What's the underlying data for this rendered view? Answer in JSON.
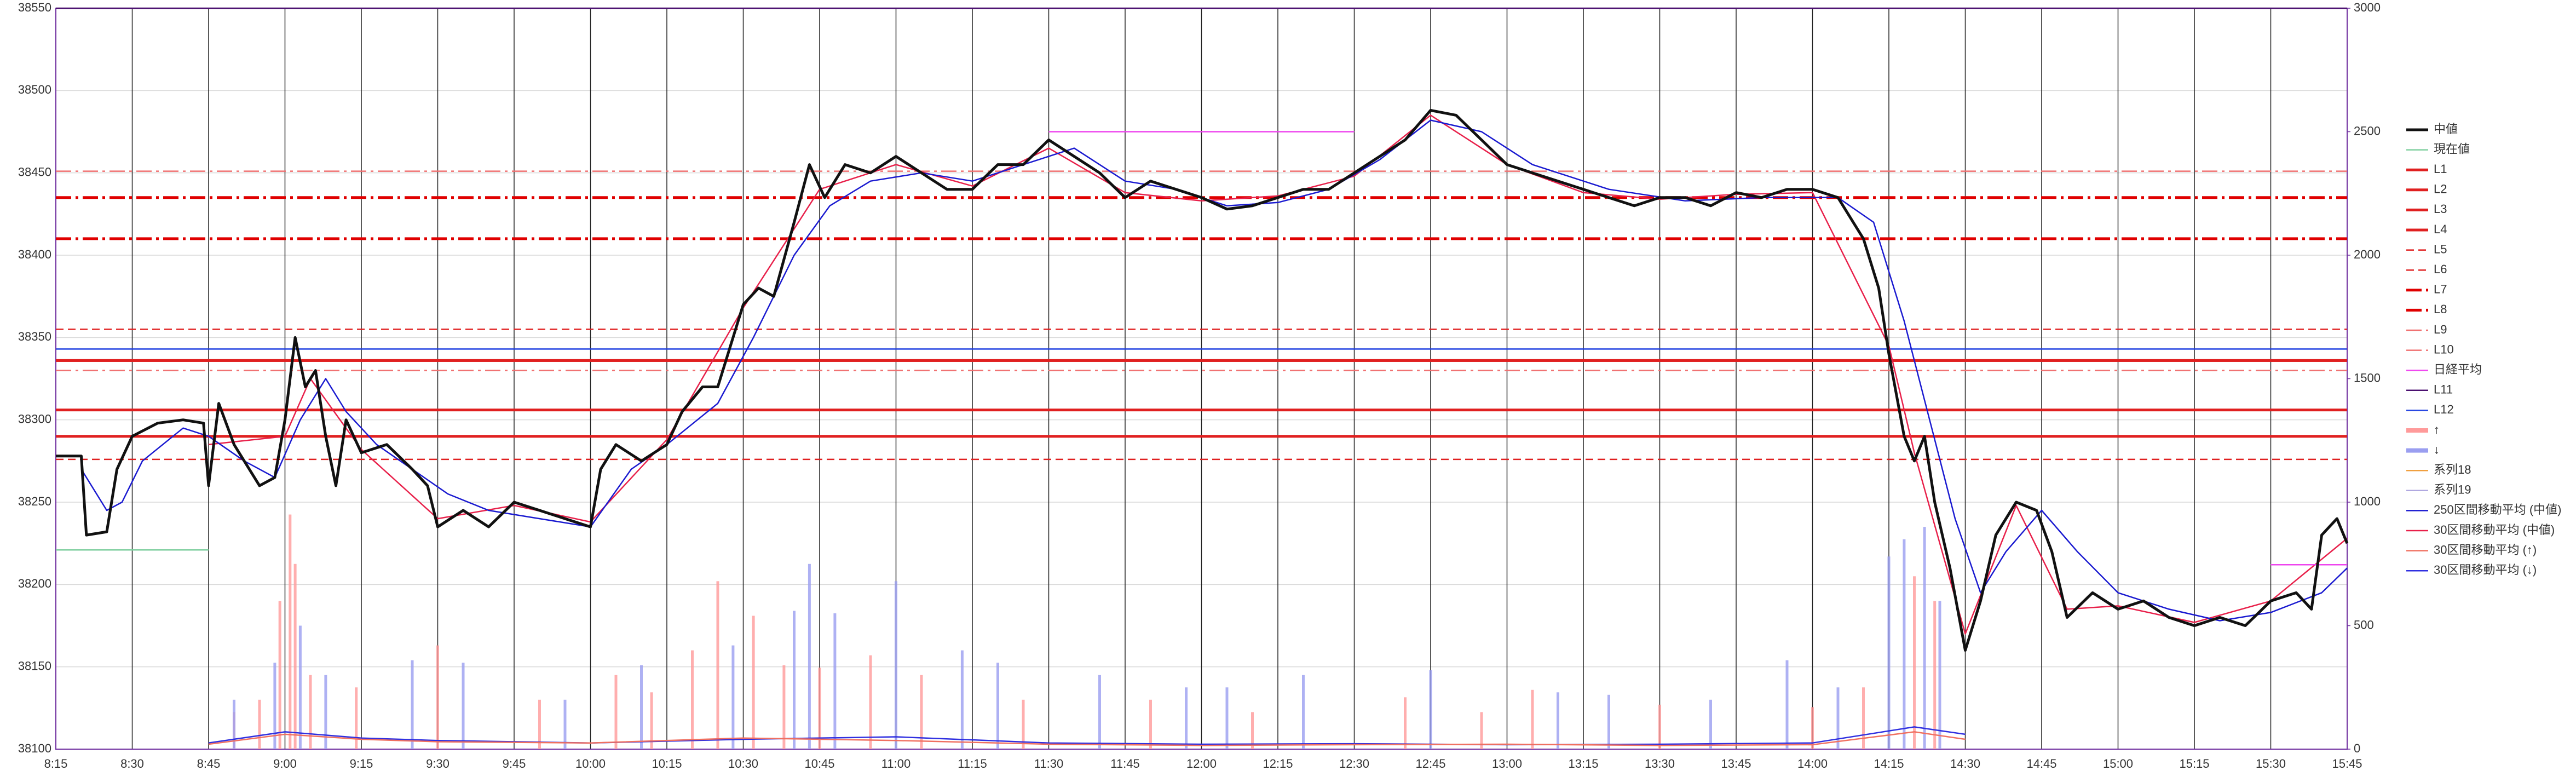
{
  "chart_data": {
    "type": "line",
    "xlim": [
      "8:15",
      "15:45"
    ],
    "xticks": [
      "8:15",
      "8:30",
      "8:45",
      "9:00",
      "9:15",
      "9:30",
      "9:45",
      "10:00",
      "10:15",
      "10:30",
      "10:45",
      "11:00",
      "11:15",
      "11:30",
      "11:45",
      "12:00",
      "12:15",
      "12:30",
      "12:45",
      "13:00",
      "13:15",
      "13:30",
      "13:45",
      "14:00",
      "14:15",
      "14:30",
      "14:45",
      "15:00",
      "15:15",
      "15:30",
      "15:45"
    ],
    "ylim": [
      38100,
      38550
    ],
    "yticks": [
      38100,
      38150,
      38200,
      38250,
      38300,
      38350,
      38400,
      38450,
      38500,
      38550
    ],
    "y2lim": [
      0,
      3000
    ],
    "y2ticks": [
      0,
      500,
      1000,
      1500,
      2000,
      2500,
      3000
    ],
    "grid": true,
    "legend": "right",
    "series": [
      {
        "name": "中値",
        "kind": "line",
        "color": "#111111",
        "dash": "solid",
        "weight": "thick",
        "x": [
          "8:15",
          "8:20",
          "8:21",
          "8:25",
          "8:27",
          "8:30",
          "8:35",
          "8:40",
          "8:44",
          "8:45",
          "8:47",
          "8:50",
          "8:55",
          "8:58",
          "9:00",
          "9:02",
          "9:04",
          "9:06",
          "9:08",
          "9:10",
          "9:12",
          "9:15",
          "9:20",
          "9:25",
          "9:28",
          "9:30",
          "9:35",
          "9:40",
          "9:45",
          "9:50",
          "9:55",
          "10:00",
          "10:02",
          "10:05",
          "10:10",
          "10:15",
          "10:18",
          "10:22",
          "10:25",
          "10:27",
          "10:30",
          "10:33",
          "10:36",
          "10:40",
          "10:43",
          "10:46",
          "10:50",
          "10:55",
          "11:00",
          "11:05",
          "11:10",
          "11:15",
          "11:20",
          "11:25",
          "11:30",
          "11:35",
          "11:40",
          "11:45",
          "11:50",
          "11:55",
          "12:00",
          "12:05",
          "12:10",
          "12:15",
          "12:20",
          "12:25",
          "12:30",
          "12:35",
          "12:40",
          "12:45",
          "12:50",
          "12:55",
          "13:00",
          "13:05",
          "13:10",
          "13:15",
          "13:20",
          "13:25",
          "13:30",
          "13:35",
          "13:40",
          "13:45",
          "13:50",
          "13:55",
          "14:00",
          "14:05",
          "14:08",
          "14:10",
          "14:13",
          "14:15",
          "14:18",
          "14:20",
          "14:22",
          "14:24",
          "14:27",
          "14:30",
          "14:33",
          "14:36",
          "14:40",
          "14:44",
          "14:47",
          "14:50",
          "14:55",
          "15:00",
          "15:05",
          "15:10",
          "15:15",
          "15:20",
          "15:25",
          "15:30",
          "15:35",
          "15:38",
          "15:40",
          "15:43",
          "15:45"
        ],
        "values": [
          38278,
          38278,
          38230,
          38232,
          38270,
          38290,
          38298,
          38300,
          38298,
          38260,
          38310,
          38285,
          38260,
          38265,
          38300,
          38350,
          38320,
          38330,
          38290,
          38260,
          38300,
          38280,
          38285,
          38270,
          38260,
          38235,
          38245,
          38235,
          38250,
          38245,
          38240,
          38235,
          38270,
          38285,
          38275,
          38285,
          38305,
          38320,
          38320,
          38340,
          38370,
          38380,
          38375,
          38420,
          38455,
          38435,
          38455,
          38450,
          38460,
          38450,
          38440,
          38440,
          38455,
          38455,
          38470,
          38460,
          38450,
          38435,
          38445,
          38440,
          38435,
          38428,
          38430,
          38435,
          38440,
          38440,
          38450,
          38460,
          38470,
          38488,
          38485,
          38470,
          38455,
          38450,
          38445,
          38440,
          38435,
          38430,
          38435,
          38435,
          38430,
          38438,
          38435,
          38440,
          38440,
          38435,
          38420,
          38410,
          38380,
          38340,
          38290,
          38275,
          38290,
          38250,
          38210,
          38160,
          38190,
          38230,
          38250,
          38245,
          38220,
          38180,
          38195,
          38185,
          38190,
          38180,
          38175,
          38180,
          38175,
          38190,
          38195,
          38185,
          38230,
          38240,
          38225
        ]
      },
      {
        "name": "現在値",
        "kind": "line",
        "color": "#7fcf9f",
        "dash": "solid",
        "weight": "thin",
        "x": [
          "8:15",
          "8:45"
        ],
        "values": [
          38221,
          38221
        ]
      },
      {
        "name": "L1",
        "kind": "hline",
        "color": "#e02020",
        "dash": "solid",
        "weight": "thick",
        "values": [
          38336
        ]
      },
      {
        "name": "L2",
        "kind": "hline",
        "color": "#e02020",
        "dash": "solid",
        "weight": "thick",
        "values": [
          38306
        ]
      },
      {
        "name": "L3",
        "kind": "hline",
        "color": "#e02020",
        "dash": "solid",
        "weight": "thick",
        "values": [
          38290
        ]
      },
      {
        "name": "L4",
        "kind": "hline",
        "color": "#e02020",
        "dash": "solid",
        "weight": "thick",
        "values": [
          38336
        ]
      },
      {
        "name": "L5",
        "kind": "hline",
        "color": "#e02020",
        "dash": "dash",
        "weight": "thin",
        "values": [
          38355
        ]
      },
      {
        "name": "L6",
        "kind": "hline",
        "color": "#e02020",
        "dash": "dash",
        "weight": "thin",
        "values": [
          38276
        ]
      },
      {
        "name": "L7",
        "kind": "hline",
        "color": "#e00000",
        "dash": "dashdot",
        "weight": "thick",
        "values": [
          38435
        ]
      },
      {
        "name": "L8",
        "kind": "hline",
        "color": "#e00000",
        "dash": "dashdot",
        "weight": "thick",
        "values": [
          38410
        ]
      },
      {
        "name": "L9",
        "kind": "hline",
        "color": "#f07070",
        "dash": "dashdot",
        "weight": "thin",
        "values": [
          38451
        ]
      },
      {
        "name": "L10",
        "kind": "hline",
        "color": "#f07070",
        "dash": "dashdot",
        "weight": "thin",
        "values": [
          38330
        ]
      },
      {
        "name": "日経平均",
        "kind": "line",
        "color": "#ee44ee",
        "dash": "solid",
        "weight": "thin",
        "x": [
          "11:30",
          "12:30",
          "12:31",
          "15:30",
          "15:45"
        ],
        "values": [
          38475,
          38475,
          null,
          38212,
          38212
        ]
      },
      {
        "name": "L11",
        "kind": "hline",
        "color": "#4b1070",
        "dash": "solid",
        "weight": "thin",
        "values": [
          38550
        ]
      },
      {
        "name": "L12",
        "kind": "hline",
        "color": "#2040e0",
        "dash": "solid",
        "weight": "thin",
        "values": [
          38343
        ]
      },
      {
        "name": "↑",
        "kind": "bar",
        "axis": "y2",
        "color": "#ff9a9a",
        "x": [
          "8:50",
          "8:55",
          "8:59",
          "9:01",
          "9:02",
          "9:05",
          "9:14",
          "9:30",
          "9:50",
          "10:05",
          "10:12",
          "10:20",
          "10:25",
          "10:32",
          "10:38",
          "10:45",
          "10:55",
          "11:05",
          "11:25",
          "11:50",
          "12:10",
          "12:40",
          "12:55",
          "13:05",
          "13:30",
          "14:00",
          "14:10",
          "14:20",
          "14:24"
        ],
        "values": [
          150,
          200,
          600,
          950,
          750,
          300,
          250,
          420,
          200,
          300,
          230,
          400,
          680,
          540,
          340,
          330,
          380,
          300,
          200,
          200,
          150,
          210,
          150,
          240,
          180,
          170,
          250,
          700,
          600
        ]
      },
      {
        "name": "↓",
        "kind": "bar",
        "axis": "y2",
        "color": "#9a9ef0",
        "x": [
          "8:50",
          "8:58",
          "9:03",
          "9:08",
          "9:25",
          "9:35",
          "9:55",
          "10:10",
          "10:28",
          "10:40",
          "10:43",
          "10:48",
          "11:00",
          "11:13",
          "11:20",
          "11:40",
          "11:57",
          "12:05",
          "12:20",
          "12:45",
          "13:10",
          "13:20",
          "13:40",
          "13:55",
          "14:05",
          "14:15",
          "14:18",
          "14:22",
          "14:25"
        ],
        "values": [
          200,
          350,
          500,
          300,
          360,
          350,
          200,
          340,
          420,
          560,
          750,
          550,
          680,
          400,
          350,
          300,
          250,
          250,
          300,
          320,
          230,
          220,
          200,
          360,
          250,
          780,
          850,
          900,
          600
        ]
      },
      {
        "name": "系列18",
        "kind": "line",
        "axis": "y2",
        "color": "#f0a040",
        "dash": "solid",
        "weight": "thin",
        "x": [],
        "values": []
      },
      {
        "name": "系列19",
        "kind": "line",
        "axis": "y2",
        "color": "#b0a8e0",
        "dash": "solid",
        "weight": "thin",
        "x": [],
        "values": []
      },
      {
        "name": "250区間移動平均 (中値)",
        "kind": "line",
        "color": "#1a1ad0",
        "dash": "solid",
        "weight": "thin",
        "x": [
          "8:20",
          "8:25",
          "8:28",
          "8:32",
          "8:40",
          "8:45",
          "8:52",
          "8:58",
          "9:03",
          "9:08",
          "9:12",
          "9:18",
          "9:25",
          "9:32",
          "9:40",
          "9:50",
          "10:00",
          "10:08",
          "10:15",
          "10:25",
          "10:32",
          "10:40",
          "10:47",
          "10:55",
          "11:05",
          "11:15",
          "11:25",
          "11:35",
          "11:45",
          "11:55",
          "12:05",
          "12:15",
          "12:25",
          "12:35",
          "12:45",
          "12:55",
          "13:05",
          "13:20",
          "13:35",
          "13:50",
          "14:05",
          "14:12",
          "14:18",
          "14:23",
          "14:28",
          "14:33",
          "14:38",
          "14:45",
          "14:52",
          "15:00",
          "15:10",
          "15:20",
          "15:30",
          "15:40",
          "15:45"
        ],
        "values": [
          38270,
          38245,
          38250,
          38275,
          38295,
          38290,
          38275,
          38265,
          38300,
          38325,
          38305,
          38285,
          38270,
          38255,
          38245,
          38240,
          38235,
          38270,
          38285,
          38310,
          38350,
          38400,
          38430,
          38445,
          38450,
          38445,
          38455,
          38465,
          38445,
          38440,
          38430,
          38432,
          38440,
          38458,
          38482,
          38475,
          38455,
          38440,
          38433,
          38435,
          38435,
          38420,
          38360,
          38300,
          38240,
          38195,
          38220,
          38245,
          38220,
          38195,
          38185,
          38178,
          38183,
          38195,
          38210
        ]
      },
      {
        "name": "30区間移動平均 (中値)",
        "kind": "line",
        "color": "#e8204a",
        "dash": "solid",
        "weight": "thin",
        "x": [
          "8:45",
          "9:00",
          "9:05",
          "9:15",
          "9:30",
          "9:45",
          "10:00",
          "10:15",
          "10:30",
          "10:45",
          "11:00",
          "11:15",
          "11:30",
          "11:45",
          "12:00",
          "12:15",
          "12:30",
          "12:45",
          "13:00",
          "13:15",
          "13:30",
          "13:45",
          "14:00",
          "14:15",
          "14:20",
          "14:30",
          "14:40",
          "14:50",
          "15:00",
          "15:15",
          "15:30",
          "15:45"
        ],
        "values": [
          38285,
          38290,
          38325,
          38282,
          38240,
          38248,
          38238,
          38288,
          38368,
          38440,
          38455,
          38442,
          38465,
          38438,
          38433,
          38436,
          38448,
          38485,
          38455,
          38438,
          38434,
          38437,
          38438,
          38345,
          38280,
          38170,
          38248,
          38185,
          38187,
          38177,
          38190,
          38228
        ]
      },
      {
        "name": "30区間移動平均 (↑)",
        "kind": "line",
        "axis": "y2",
        "color": "#f07060",
        "dash": "solid",
        "weight": "thin",
        "x": [
          "8:45",
          "9:00",
          "9:15",
          "9:30",
          "10:00",
          "10:30",
          "11:00",
          "11:30",
          "12:00",
          "12:30",
          "13:00",
          "13:30",
          "14:00",
          "14:20",
          "14:30"
        ],
        "values": [
          20,
          60,
          40,
          30,
          25,
          45,
          35,
          20,
          15,
          18,
          20,
          15,
          18,
          70,
          40
        ]
      },
      {
        "name": "30区間移動平均 (↓)",
        "kind": "line",
        "axis": "y2",
        "color": "#3030e0",
        "dash": "solid",
        "weight": "thin",
        "x": [
          "8:45",
          "9:00",
          "9:15",
          "9:30",
          "10:00",
          "10:30",
          "11:00",
          "11:30",
          "12:00",
          "12:30",
          "13:00",
          "13:30",
          "14:00",
          "14:20",
          "14:30"
        ],
        "values": [
          25,
          70,
          45,
          35,
          25,
          40,
          50,
          25,
          20,
          22,
          18,
          20,
          25,
          90,
          60
        ]
      }
    ]
  }
}
